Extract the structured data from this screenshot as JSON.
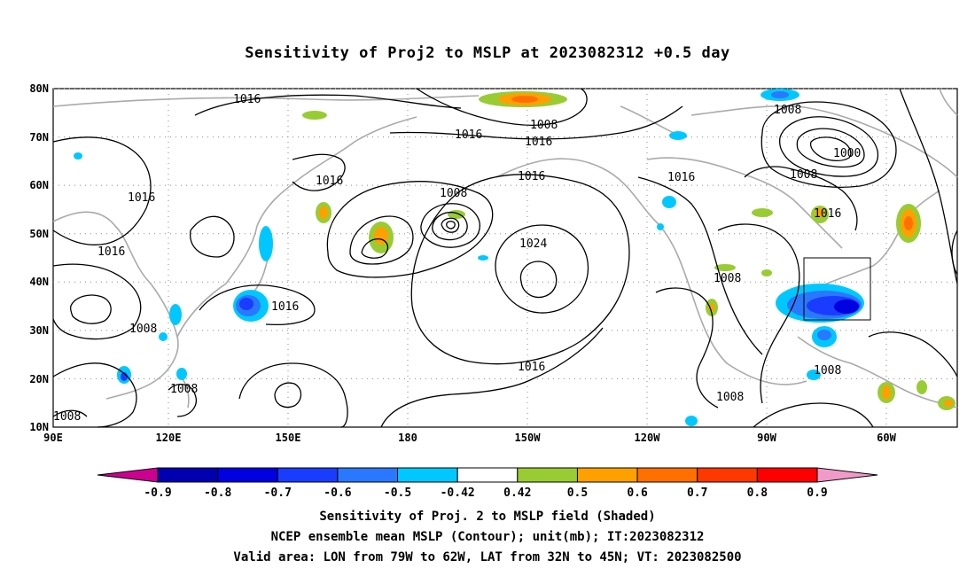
{
  "title": "Sensitivity of Proj2 to MSLP at 2023082312 +0.5 day",
  "map": {
    "lat_labels": [
      "80N",
      "70N",
      "60N",
      "50N",
      "40N",
      "30N",
      "20N",
      "10N"
    ],
    "lon_labels": [
      "90E",
      "120E",
      "150E",
      "180",
      "150W",
      "120W",
      "90W",
      "60W"
    ],
    "valid_box": {
      "lon_from_deg_w": 79,
      "lon_to_deg_w": 62,
      "lat_from": 32,
      "lat_to": 45
    },
    "contour_labels": [
      "1016",
      "1008",
      "1016",
      "1016",
      "1016",
      "1008",
      "1016",
      "1016",
      "1016",
      "1008",
      "1016",
      "1024",
      "1016",
      "1008",
      "1000",
      "1008",
      "1016",
      "1016",
      "1008",
      "1008",
      "1016",
      "1008",
      "1008",
      "1008"
    ]
  },
  "colorbar": {
    "labels": [
      "-0.9",
      "-0.8",
      "-0.7",
      "-0.6",
      "-0.5",
      "-0.42",
      "0.42",
      "0.5",
      "0.6",
      "0.7",
      "0.8",
      "0.9"
    ],
    "colors": [
      "#cc0090",
      "#0000b0",
      "#0000e0",
      "#1a3cff",
      "#2a78ff",
      "#00c8ff",
      "#ffffff",
      "#99cc33",
      "#ffa000",
      "#ff7000",
      "#ff3800",
      "#ff0000",
      "#f09ac8"
    ]
  },
  "captions": {
    "line1": "Sensitivity of Proj. 2 to MSLP field (Shaded)",
    "line2": "NCEP ensemble mean MSLP (Contour); unit(mb); IT:2023082312",
    "line3": "Valid area: LON from 79W to 62W, LAT from 32N to 45N; VT: 2023082500"
  }
}
